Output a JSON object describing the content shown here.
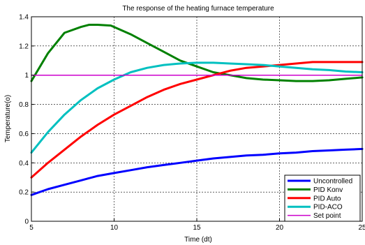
{
  "chart_data": {
    "type": "line",
    "title": "The response of the heating furnace temperature",
    "xlabel": "Time (dt)",
    "ylabel": "Temperature(o)",
    "xlim": [
      5,
      25
    ],
    "ylim": [
      0,
      1.4
    ],
    "xticks": [
      "5",
      "10",
      "15",
      "20",
      "25"
    ],
    "yticks": [
      "0",
      "0.2",
      "0.4",
      "0.6",
      "0.8",
      "1",
      "1.2",
      "1.4"
    ],
    "xtick_values": [
      5,
      10,
      15,
      20,
      25
    ],
    "ytick_values": [
      0,
      0.2,
      0.4,
      0.6,
      0.8,
      1,
      1.2,
      1.4
    ],
    "grid": true,
    "legend_position": "bottom-right",
    "series": [
      {
        "name": "Uncontrolled",
        "color": "#0000ff",
        "x": [
          5,
          6,
          7,
          8,
          9,
          10,
          11,
          12,
          13,
          14,
          15,
          16,
          17,
          18,
          19,
          20,
          21,
          22,
          23,
          24,
          25
        ],
        "y": [
          0.18,
          0.22,
          0.25,
          0.28,
          0.31,
          0.33,
          0.35,
          0.37,
          0.385,
          0.4,
          0.415,
          0.43,
          0.44,
          0.45,
          0.455,
          0.465,
          0.47,
          0.48,
          0.485,
          0.49,
          0.495
        ]
      },
      {
        "name": "PID Konv",
        "color": "#008000",
        "x": [
          5,
          6,
          7,
          8,
          8.5,
          9,
          9.8,
          11,
          12,
          13,
          14,
          15,
          16,
          17,
          18,
          19,
          20,
          21,
          22,
          23,
          24,
          25
        ],
        "y": [
          0.96,
          1.15,
          1.29,
          1.33,
          1.345,
          1.345,
          1.34,
          1.28,
          1.22,
          1.16,
          1.1,
          1.06,
          1.02,
          1.0,
          0.98,
          0.97,
          0.965,
          0.96,
          0.96,
          0.965,
          0.975,
          0.985
        ]
      },
      {
        "name": "PID Auto",
        "color": "#ff0000",
        "x": [
          5,
          6,
          7,
          8,
          9,
          10,
          11,
          12,
          13,
          14,
          15,
          16,
          17,
          18,
          19,
          20,
          21,
          22,
          23,
          24,
          25
        ],
        "y": [
          0.3,
          0.4,
          0.49,
          0.58,
          0.66,
          0.73,
          0.79,
          0.85,
          0.9,
          0.94,
          0.97,
          1.0,
          1.03,
          1.05,
          1.06,
          1.07,
          1.08,
          1.09,
          1.09,
          1.09,
          1.09
        ]
      },
      {
        "name": "PID-ACO",
        "color": "#00c0c0",
        "x": [
          5,
          6,
          7,
          8,
          9,
          10,
          11,
          12,
          13,
          14,
          15,
          16,
          17,
          18,
          19,
          20,
          21,
          22,
          23,
          24,
          25
        ],
        "y": [
          0.47,
          0.61,
          0.73,
          0.83,
          0.91,
          0.97,
          1.02,
          1.05,
          1.07,
          1.08,
          1.085,
          1.085,
          1.08,
          1.075,
          1.07,
          1.06,
          1.05,
          1.04,
          1.035,
          1.025,
          1.02
        ]
      },
      {
        "name": "Set point",
        "color": "#cc00cc",
        "x": [
          5,
          25
        ],
        "y": [
          1,
          1
        ]
      }
    ]
  }
}
